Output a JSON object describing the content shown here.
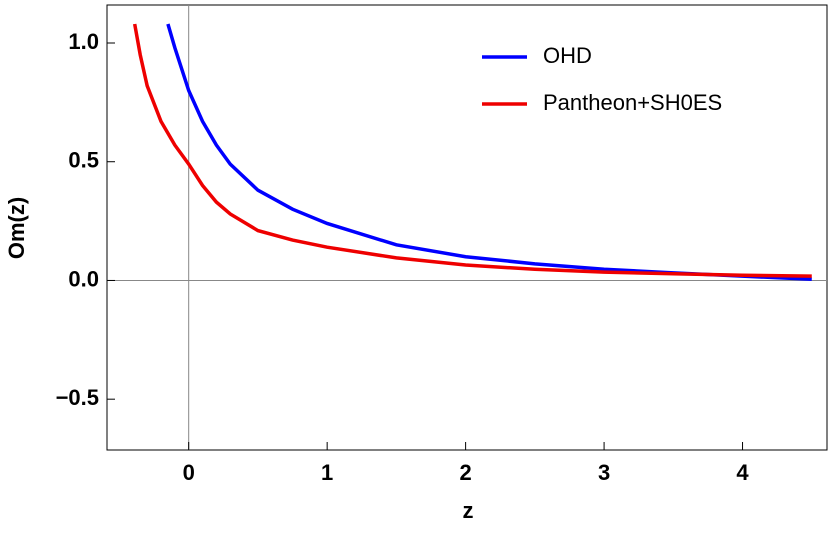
{
  "chart_data": {
    "type": "line",
    "xlabel": "z",
    "ylabel": "Om(z)",
    "xlim": [
      -0.59,
      4.61
    ],
    "ylim": [
      -0.714,
      1.16
    ],
    "xticks": [
      0,
      1,
      2,
      3,
      4
    ],
    "yticks": [
      {
        "value": -0.5,
        "label": "−0.5"
      },
      {
        "value": 0,
        "label": "0.0"
      },
      {
        "value": 0.5,
        "label": "0.5"
      },
      {
        "value": 1,
        "label": "1.0"
      }
    ],
    "legend": "upper right",
    "series": [
      {
        "name": "OHD",
        "color": "#0000ff",
        "x": [
          -0.15,
          -0.1,
          -0.05,
          0,
          0.1,
          0.2,
          0.3,
          0.5,
          0.75,
          1,
          1.5,
          2,
          2.5,
          3,
          3.5,
          4,
          4.5
        ],
        "values": [
          1.08,
          0.98,
          0.89,
          0.8,
          0.67,
          0.57,
          0.49,
          0.38,
          0.3,
          0.24,
          0.15,
          0.1,
          0.07,
          0.047,
          0.032,
          0.018,
          0.005
        ]
      },
      {
        "name": "Pantheon+SH0ES",
        "color": "#ee0000",
        "x": [
          -0.39,
          -0.35,
          -0.3,
          -0.2,
          -0.1,
          0,
          0.1,
          0.2,
          0.3,
          0.5,
          0.75,
          1,
          1.5,
          2,
          2.5,
          3,
          3.5,
          4,
          4.5
        ],
        "values": [
          1.08,
          0.95,
          0.82,
          0.67,
          0.57,
          0.49,
          0.4,
          0.33,
          0.28,
          0.21,
          0.17,
          0.14,
          0.095,
          0.065,
          0.047,
          0.035,
          0.028,
          0.022,
          0.018
        ]
      }
    ]
  }
}
